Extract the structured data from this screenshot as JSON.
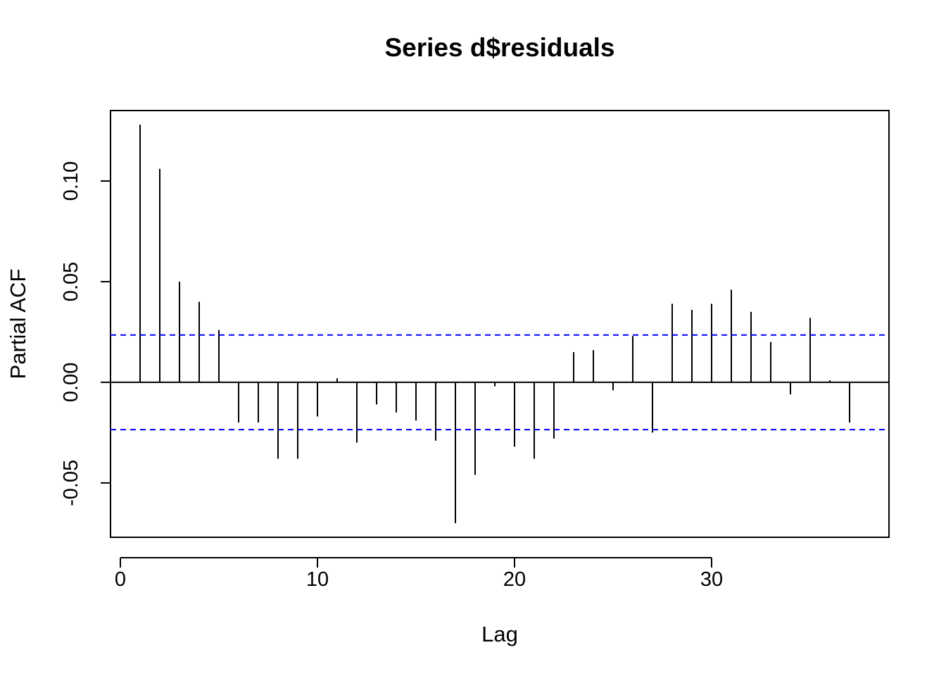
{
  "chart_data": {
    "type": "bar",
    "title": "Series  d$residuals",
    "xlabel": "Lag",
    "ylabel": "Partial ACF",
    "xlim": [
      -0.5,
      39
    ],
    "ylim": [
      -0.077,
      0.135
    ],
    "x_ticks": [
      0,
      10,
      20,
      30
    ],
    "x_tick_labels": [
      "0",
      "10",
      "20",
      "30"
    ],
    "y_ticks": [
      -0.05,
      0.0,
      0.05,
      0.1
    ],
    "y_tick_labels": [
      "-0.05",
      "0.00",
      "0.05",
      "0.10"
    ],
    "grid": false,
    "confidence_bounds": [
      0.0235,
      -0.0235
    ],
    "confidence_color": "#0000ff",
    "bar_color": "#000000",
    "lags": [
      1,
      2,
      3,
      4,
      5,
      6,
      7,
      8,
      9,
      10,
      11,
      12,
      13,
      14,
      15,
      16,
      17,
      18,
      19,
      20,
      21,
      22,
      23,
      24,
      25,
      26,
      27,
      28,
      29,
      30,
      31,
      32,
      33,
      34,
      35,
      36,
      37,
      38
    ],
    "values": [
      0.128,
      0.106,
      0.05,
      0.04,
      0.026,
      -0.02,
      -0.02,
      -0.038,
      -0.038,
      -0.017,
      0.002,
      -0.03,
      -0.011,
      -0.015,
      -0.019,
      -0.029,
      -0.07,
      -0.046,
      -0.002,
      -0.032,
      -0.038,
      -0.028,
      0.015,
      0.016,
      -0.004,
      0.023,
      -0.025,
      0.039,
      0.036,
      0.039,
      0.046,
      0.035,
      0.02,
      -0.006,
      0.032,
      0.001,
      -0.02,
      0.0
    ]
  }
}
